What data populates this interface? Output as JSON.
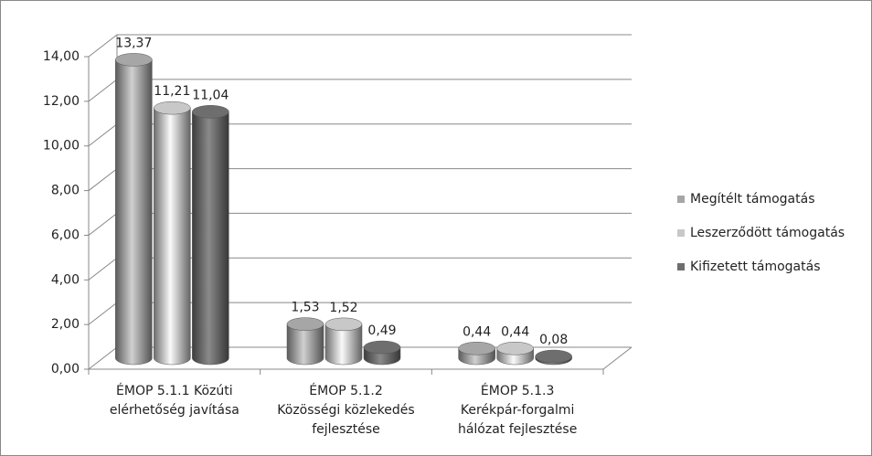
{
  "chart_data": {
    "type": "bar3d",
    "categories": [
      [
        "ÉMOP 5.1.1 Közúti",
        "elérhetőség javítása"
      ],
      [
        "ÉMOP 5.1.2",
        "Közösségi közlekedés",
        "fejlesztése"
      ],
      [
        "ÉMOP 5.1.3",
        "Kerékpár-forgalmi",
        "hálózat fejlesztése"
      ]
    ],
    "series": [
      {
        "name": "Megítélt támogatás",
        "color": "#a6a6a6",
        "values": [
          13.37,
          1.53,
          0.44
        ],
        "value_labels": [
          "13,37",
          "1,53",
          "0,44"
        ]
      },
      {
        "name": "Leszerződött támogatás",
        "color": "#c8c8c8",
        "values": [
          11.21,
          1.52,
          0.44
        ],
        "value_labels": [
          "11,21",
          "1,52",
          "0,44"
        ]
      },
      {
        "name": "Kifizetett támogatás",
        "color": "#6e6e6e",
        "values": [
          11.04,
          0.49,
          0.08
        ],
        "value_labels": [
          "11,04",
          "0,49",
          "0,08"
        ]
      }
    ],
    "ylim": [
      0,
      14
    ],
    "yticks": [
      {
        "value": 0,
        "label": "0,00"
      },
      {
        "value": 2,
        "label": "2,00"
      },
      {
        "value": 4,
        "label": "4,00"
      },
      {
        "value": 6,
        "label": "6,00"
      },
      {
        "value": 8,
        "label": "8,00"
      },
      {
        "value": 10,
        "label": "10,00"
      },
      {
        "value": 12,
        "label": "12,00"
      },
      {
        "value": 14,
        "label": "14,00"
      }
    ],
    "grid": true,
    "legend": "right"
  }
}
